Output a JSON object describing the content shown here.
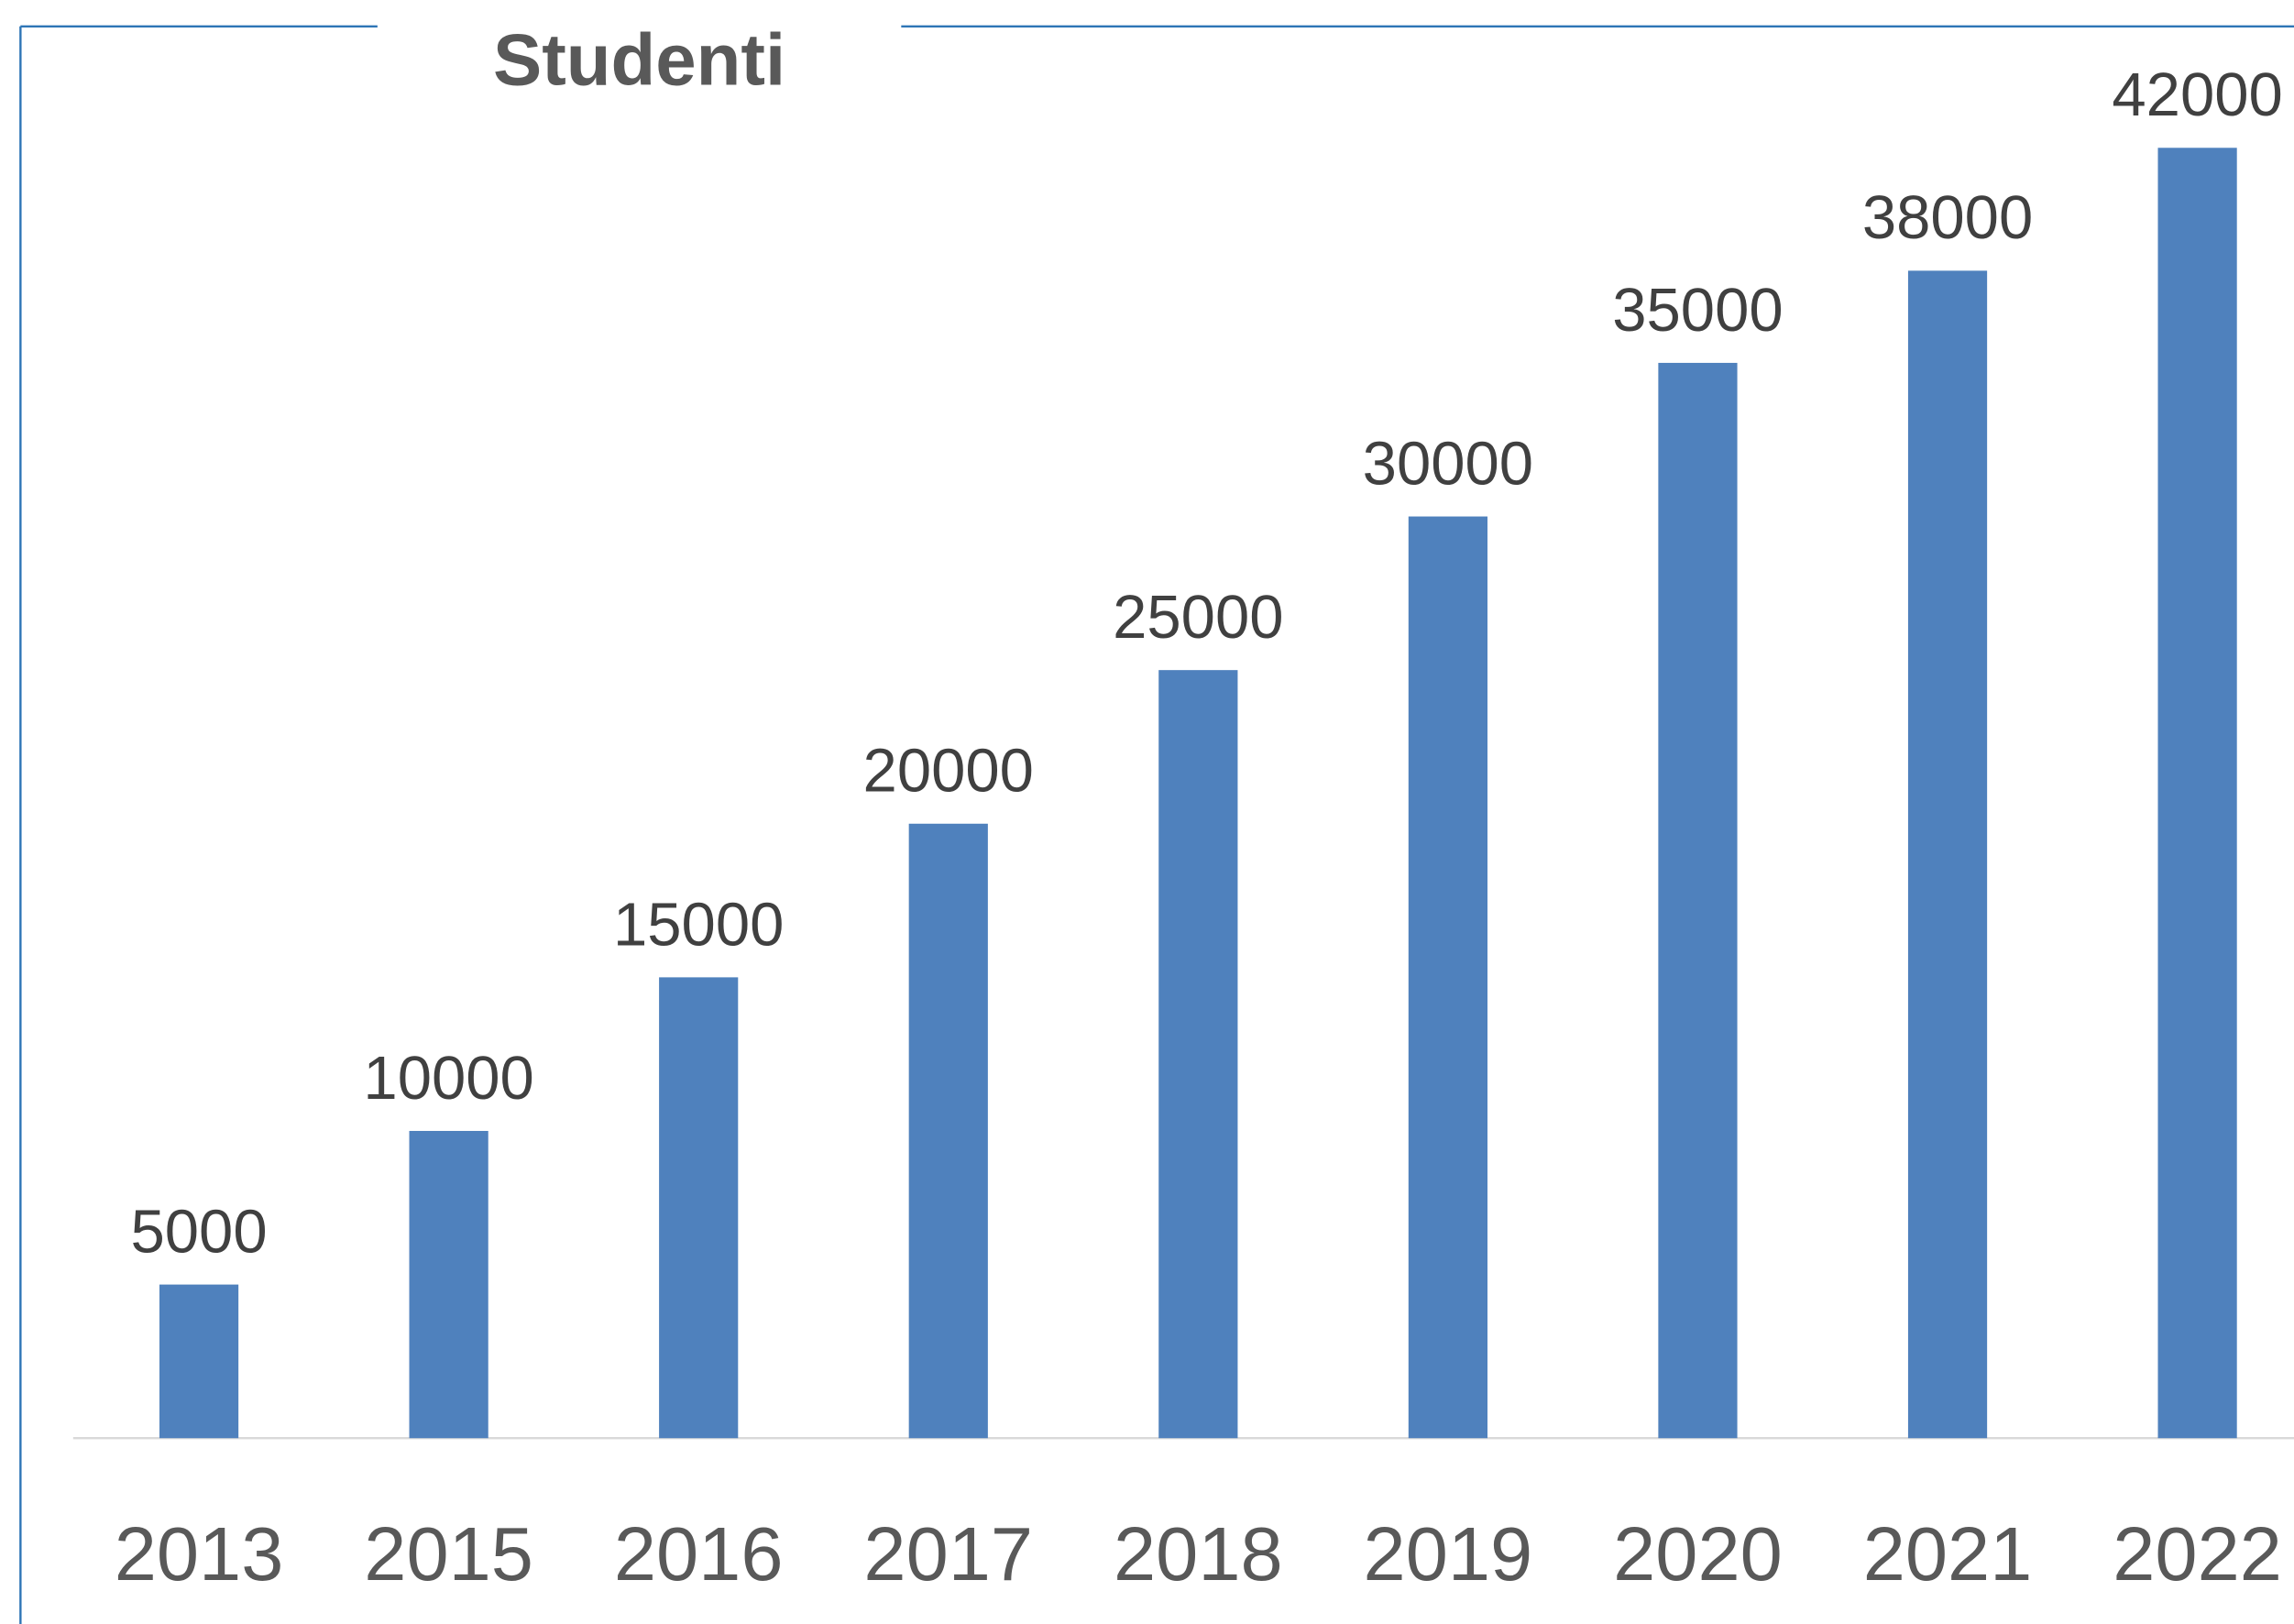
{
  "chart_data": {
    "type": "bar",
    "title": "Studenti",
    "categories": [
      "2013",
      "2015",
      "2016",
      "2017",
      "2018",
      "2019",
      "2020",
      "2021",
      "2022"
    ],
    "values": [
      5000,
      10000,
      15000,
      20000,
      25000,
      30000,
      35000,
      38000,
      42000
    ],
    "color": "#4f81bd",
    "ylim": [
      0,
      42000
    ]
  }
}
